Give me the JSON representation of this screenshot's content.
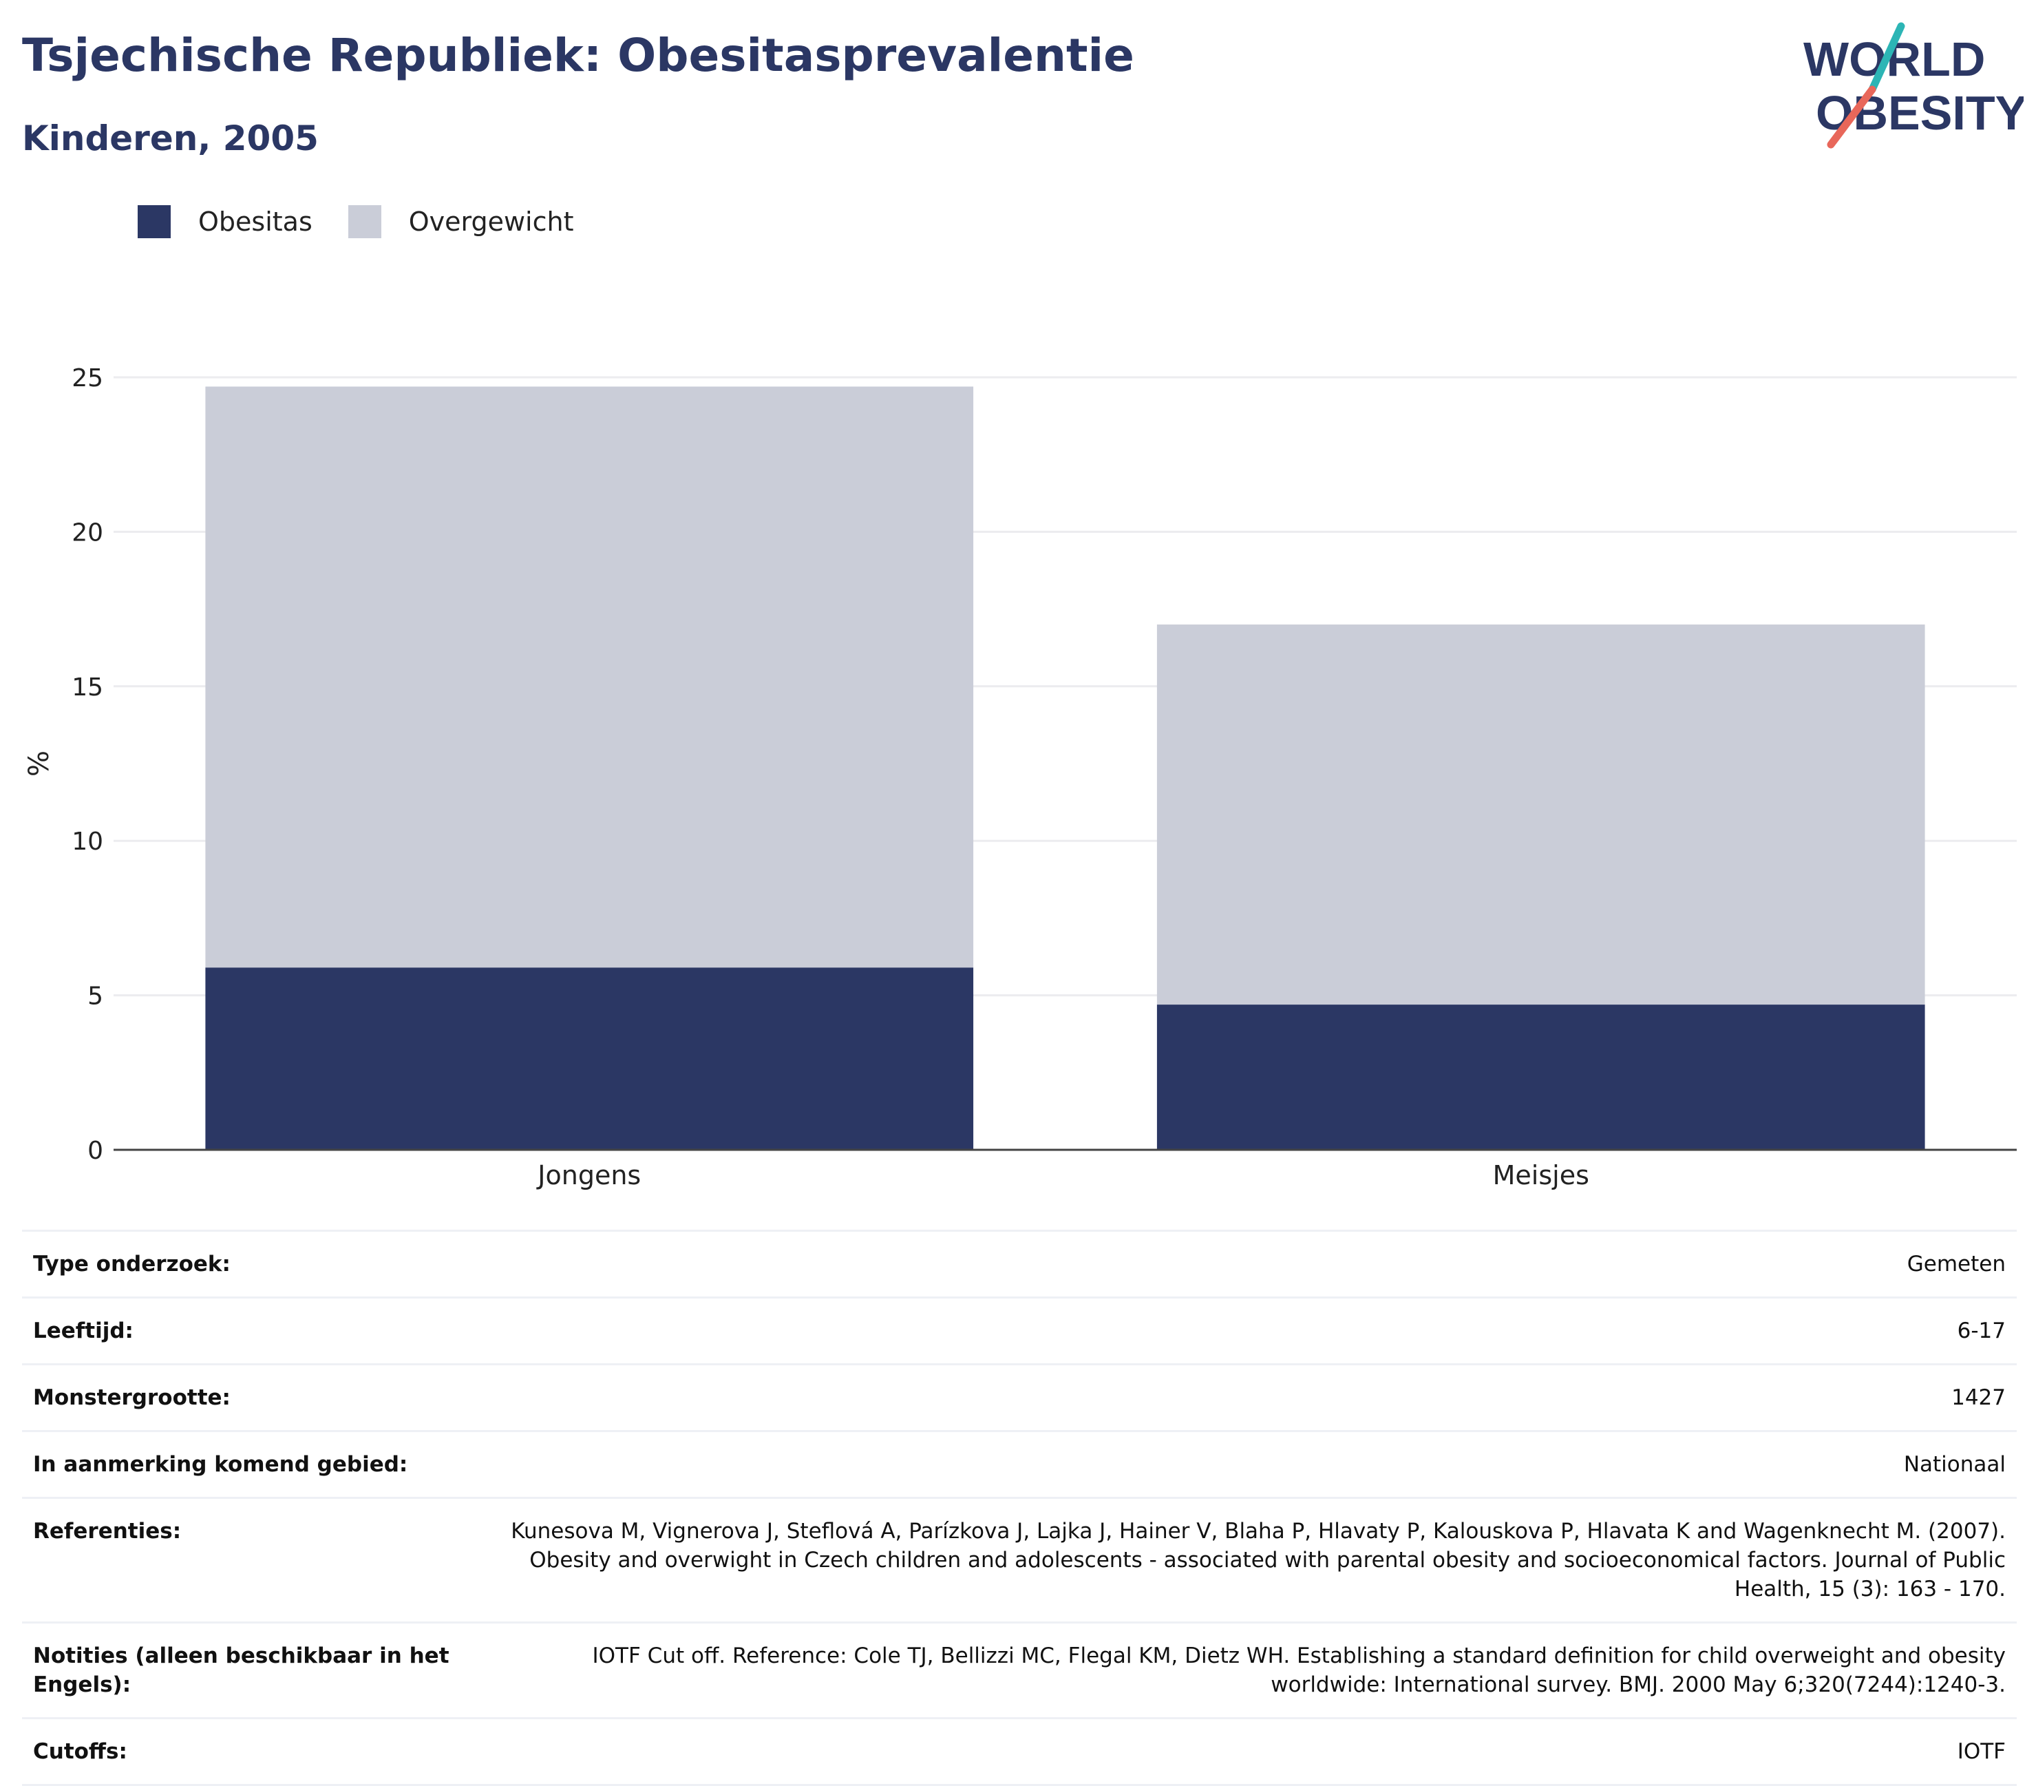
{
  "header": {
    "title": "Tsjechische Republiek: Obesitasprevalentie",
    "subtitle": "Kinderen, 2005"
  },
  "logo": {
    "line1": "WORLD",
    "line2": "OBESITY",
    "colors": {
      "text": "#2b3764",
      "teal": "#2cb5b5",
      "coral": "#e8675a"
    }
  },
  "chart_data": {
    "type": "bar",
    "stacked": true,
    "categories": [
      "Jongens",
      "Meisjes"
    ],
    "series": [
      {
        "name": "Obesitas",
        "color": "#2b3764",
        "values": [
          5.9,
          4.7
        ]
      },
      {
        "name": "Overgewicht",
        "color": "#cacdd8",
        "values": [
          18.8,
          12.3
        ]
      }
    ],
    "ylabel": "%",
    "xlabel": "",
    "ylim": [
      0,
      25
    ],
    "yticks": [
      0,
      5,
      10,
      15,
      20,
      25
    ],
    "grid": true,
    "legend_position": "top-left"
  },
  "info_rows": [
    {
      "label": "Type onderzoek:",
      "value": "Gemeten"
    },
    {
      "label": "Leeftijd:",
      "value": "6-17"
    },
    {
      "label": "Monstergrootte:",
      "value": "1427"
    },
    {
      "label": "In aanmerking komend gebied:",
      "value": "Nationaal"
    },
    {
      "label": "Referenties:",
      "value": "Kunesova M, Vignerova J, Steflová A, Parízkova J, Lajka J, Hainer V, Blaha P, Hlavaty P, Kalouskova P, Hlavata K and Wagenknecht M. (2007). Obesity and overwight in Czech children and adolescents - associated with parental obesity and socioeconomical factors. Journal of Public Health, 15 (3): 163 - 170."
    },
    {
      "label": "Notities (alleen beschikbaar in het Engels):",
      "value": "IOTF Cut off. Reference: Cole TJ, Bellizzi MC, Flegal KM, Dietz WH. Establishing a standard definition for child overweight and obesity worldwide: International survey. BMJ. 2000 May 6;320(7244):1240-3."
    },
    {
      "label": "Cutoffs:",
      "value": "IOTF"
    }
  ]
}
